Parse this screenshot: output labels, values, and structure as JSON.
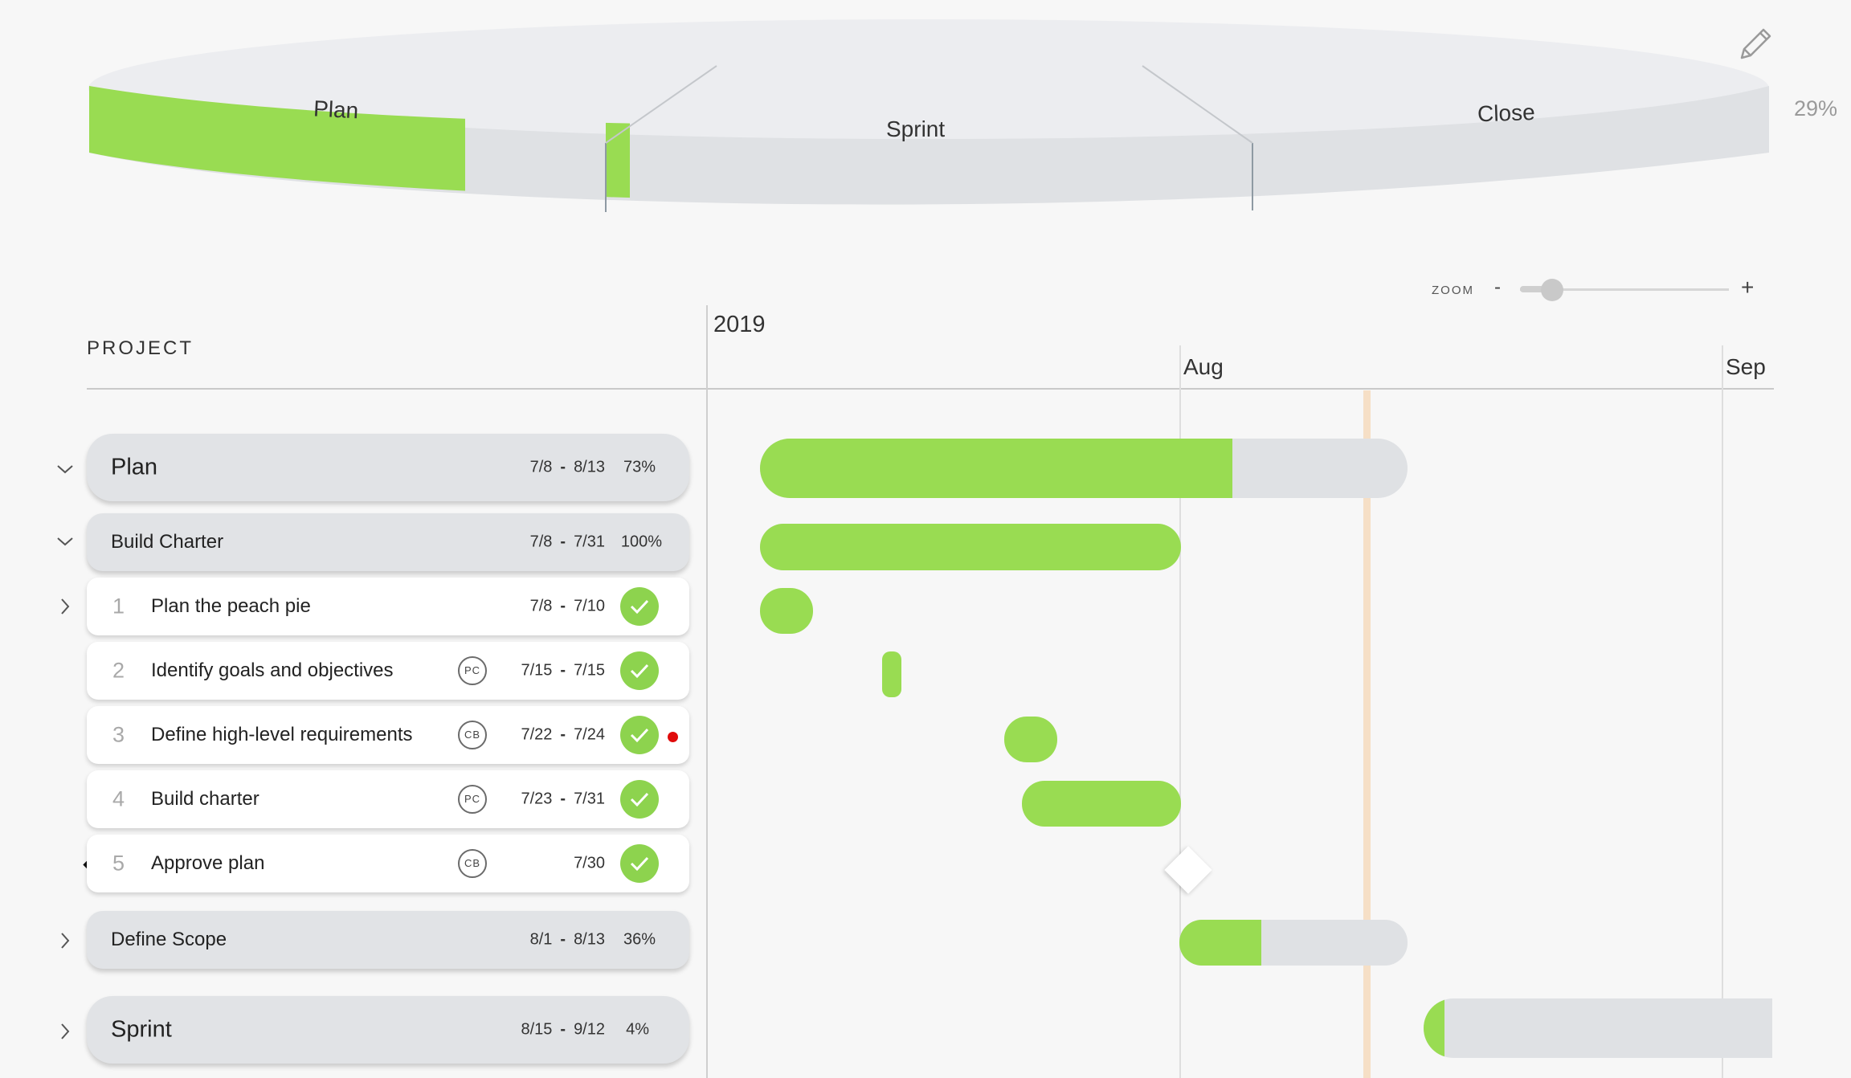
{
  "summary": {
    "overall_pct": "29%",
    "phases": [
      {
        "label": "Plan",
        "progress": 0.73
      },
      {
        "label": "Sprint",
        "progress": 0.04
      },
      {
        "label": "Close",
        "progress": 0.0
      }
    ]
  },
  "toolbar": {
    "edit_icon": "pencil-icon"
  },
  "zoom": {
    "label": "ZOOM",
    "minus": "-",
    "plus": "+",
    "level": 0.1
  },
  "grid": {
    "project_header": "PROJECT",
    "year": "2019",
    "months": [
      "Aug",
      "Sep"
    ]
  },
  "rows": [
    {
      "name": "Plan",
      "start": "7/8",
      "end": "8/13",
      "pct": "73%",
      "progress": 0.73
    },
    {
      "name": "Build Charter",
      "start": "7/8",
      "end": "7/31",
      "pct": "100%",
      "progress": 1.0
    },
    {
      "num": "1",
      "name": "Plan the peach pie",
      "assignee": "",
      "start": "7/8",
      "end": "7/10",
      "done": true
    },
    {
      "num": "2",
      "name": "Identify goals and objectives",
      "assignee": "PC",
      "start": "7/15",
      "end": "7/15",
      "done": true
    },
    {
      "num": "3",
      "name": "Define high-level requirements",
      "assignee": "CB",
      "start": "7/22",
      "end": "7/24",
      "done": true
    },
    {
      "num": "4",
      "name": "Build charter",
      "assignee": "PC",
      "start": "7/23",
      "end": "7/31",
      "done": true
    },
    {
      "num": "5",
      "name": "Approve plan",
      "assignee": "CB",
      "date": "7/30",
      "done": true
    },
    {
      "name": "Define Scope",
      "start": "8/1",
      "end": "8/13",
      "pct": "36%",
      "progress": 0.36
    },
    {
      "name": "Sprint",
      "start": "8/15",
      "end": "9/12",
      "pct": "4%",
      "progress": 0.04
    }
  ],
  "colors": {
    "progress": "#99dc52",
    "remaining": "#dfe1e4",
    "today": "#f6dfc6",
    "alert": "#e00b0b",
    "selected": "#3d94e8"
  }
}
